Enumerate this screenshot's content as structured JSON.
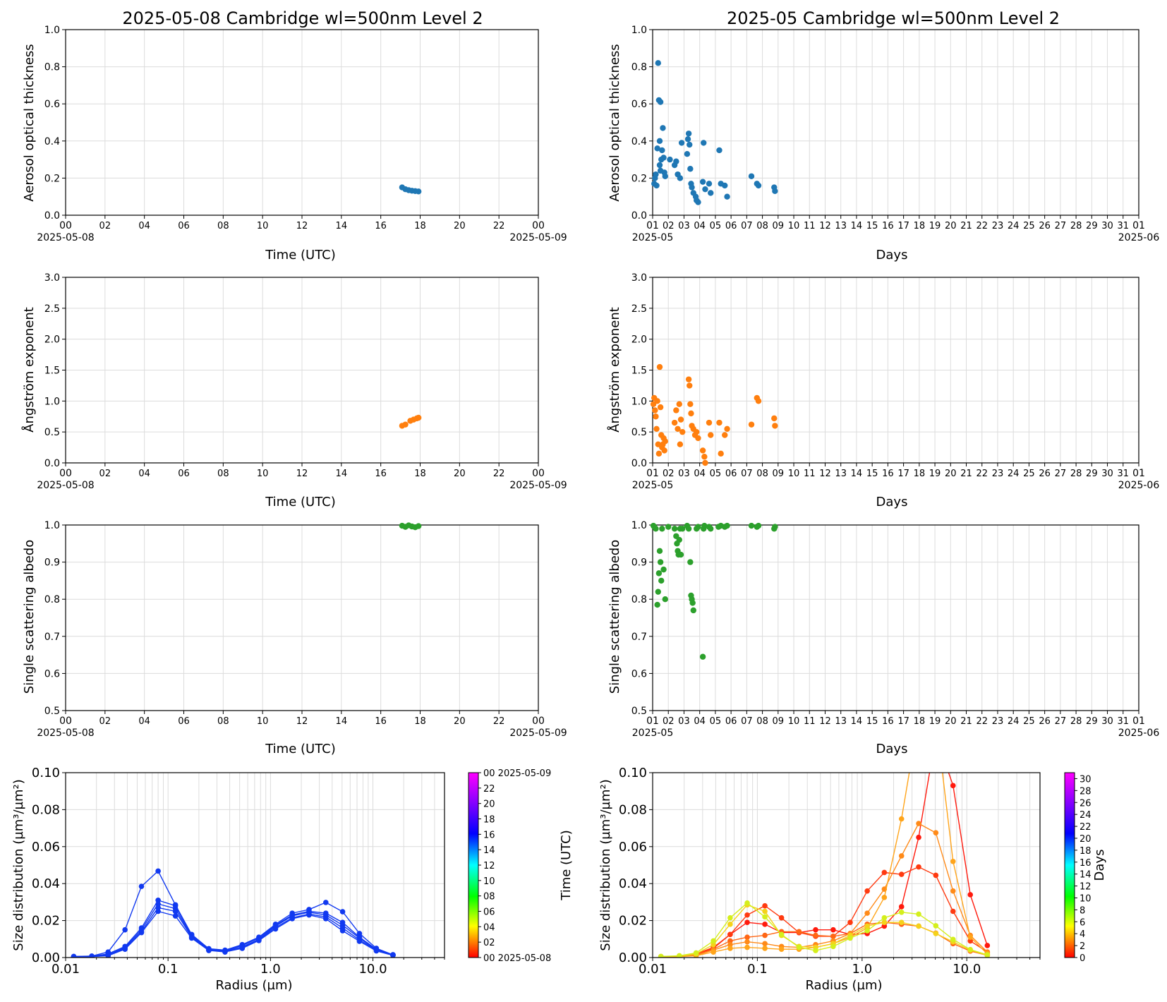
{
  "panels": {
    "left_title": "2025-05-08  Cambridge  wl=500nm  Level 2",
    "right_title": "2025-05  Cambridge  wl=500nm  Level 2",
    "time_xlabel": "Time (UTC)",
    "days_xlabel": "Days",
    "radius_xlabel": "Radius (µm)",
    "aod_ylabel": "Aerosol optical thickness",
    "angstrom_ylabel": "Ångström exponent",
    "ssa_ylabel": "Single scattering albedo",
    "sd_ylabel": "Size distribution (µm³/µm²)",
    "time_ticks": [
      "00",
      "02",
      "04",
      "06",
      "08",
      "10",
      "12",
      "14",
      "16",
      "18",
      "20",
      "22",
      "00"
    ],
    "time_start_date": "2025-05-08",
    "time_end_date": "2025-05-09",
    "day_ticks": [
      "01",
      "02",
      "03",
      "04",
      "05",
      "06",
      "07",
      "08",
      "09",
      "10",
      "11",
      "12",
      "13",
      "14",
      "15",
      "16",
      "17",
      "18",
      "19",
      "20",
      "21",
      "22",
      "23",
      "24",
      "25",
      "26",
      "27",
      "28",
      "29",
      "30",
      "31",
      "01"
    ],
    "day_start_month": "2025-05",
    "day_end_month": "2025-06",
    "radius_ticks": [
      "0.01",
      "0.1",
      "1.0",
      "10.0"
    ],
    "left_colorbar_label": "Time (UTC)",
    "left_colorbar_ticks": [
      "00 2025-05-08",
      "02",
      "04",
      "06",
      "08",
      "10",
      "12",
      "14",
      "16",
      "18",
      "20",
      "22",
      "00 2025-05-09"
    ],
    "right_colorbar_label": "Days",
    "right_colorbar_ticks": [
      "0",
      "2",
      "4",
      "6",
      "8",
      "10",
      "12",
      "14",
      "16",
      "18",
      "20",
      "22",
      "24",
      "26",
      "28",
      "30"
    ]
  },
  "colors": {
    "aod": "#1f77b4",
    "angstrom": "#ff7f0e",
    "ssa": "#2ca02c",
    "daily_sd": "#1139f0"
  },
  "chart_data": [
    {
      "id": "aod_daily",
      "type": "scatter",
      "title": "2025-05-08  Cambridge  wl=500nm  Level 2",
      "xlabel": "Time (UTC)",
      "ylabel": "Aerosol optical thickness",
      "xlim": [
        "2025-05-08 00:00",
        "2025-05-09 00:00"
      ],
      "ylim": [
        0,
        1.0
      ],
      "grid": true,
      "series": [
        {
          "x": [
            "17:05",
            "17:15",
            "17:25",
            "17:35",
            "17:45",
            "17:55"
          ],
          "y": [
            0.15,
            0.14,
            0.135,
            0.132,
            0.13,
            0.128
          ]
        }
      ]
    },
    {
      "id": "aod_monthly",
      "type": "scatter",
      "title": "2025-05  Cambridge  wl=500nm  Level 2",
      "xlabel": "Days",
      "ylabel": "Aerosol optical thickness",
      "xlim": [
        "2025-05-01",
        "2025-06-01"
      ],
      "ylim": [
        0,
        1.0
      ],
      "grid": true,
      "series": [
        {
          "x": [
            1.1,
            1.15,
            1.2,
            1.25,
            1.3,
            1.35,
            1.4,
            1.45,
            1.45,
            1.5,
            1.5,
            1.55,
            1.6,
            1.65,
            1.7,
            1.75,
            1.8,
            2.1,
            2.4,
            2.5,
            2.6,
            2.75,
            2.85,
            3.2,
            3.25,
            3.3,
            3.35,
            3.4,
            3.45,
            3.5,
            3.6,
            3.75,
            3.8,
            3.9,
            4.2,
            4.25,
            4.35,
            4.6,
            4.7,
            5.25,
            5.35,
            5.6,
            5.75,
            7.3,
            7.65,
            7.75,
            8.75,
            8.8
          ],
          "y": [
            0.17,
            0.2,
            0.22,
            0.16,
            0.36,
            0.82,
            0.62,
            0.4,
            0.27,
            0.61,
            0.24,
            0.3,
            0.35,
            0.47,
            0.31,
            0.23,
            0.21,
            0.3,
            0.27,
            0.29,
            0.22,
            0.2,
            0.39,
            0.33,
            0.41,
            0.44,
            0.38,
            0.25,
            0.17,
            0.15,
            0.12,
            0.1,
            0.08,
            0.07,
            0.18,
            0.39,
            0.14,
            0.17,
            0.12,
            0.35,
            0.17,
            0.16,
            0.1,
            0.21,
            0.17,
            0.16,
            0.15,
            0.13
          ]
        }
      ]
    },
    {
      "id": "ae_daily",
      "type": "scatter",
      "xlabel": "Time (UTC)",
      "ylabel": "Ångström exponent",
      "xlim": [
        "2025-05-08 00:00",
        "2025-05-09 00:00"
      ],
      "ylim": [
        0,
        3.0
      ],
      "grid": true,
      "series": [
        {
          "x": [
            "17:05",
            "17:15",
            "17:30",
            "17:40",
            "17:50",
            "17:55"
          ],
          "y": [
            0.6,
            0.62,
            0.68,
            0.7,
            0.72,
            0.73
          ]
        }
      ]
    },
    {
      "id": "ae_monthly",
      "type": "scatter",
      "xlabel": "Days",
      "ylabel": "Ångström exponent",
      "xlim": [
        "2025-05-01",
        "2025-06-01"
      ],
      "ylim": [
        0,
        3.0
      ],
      "grid": true,
      "series": [
        {
          "x": [
            1.05,
            1.1,
            1.15,
            1.2,
            1.25,
            1.3,
            1.35,
            1.4,
            1.45,
            1.5,
            1.55,
            1.6,
            1.65,
            1.7,
            1.75,
            1.8,
            2.4,
            2.5,
            2.6,
            2.7,
            2.75,
            2.8,
            2.9,
            3.3,
            3.35,
            3.4,
            3.45,
            3.5,
            3.6,
            3.7,
            3.8,
            3.9,
            4.2,
            4.3,
            4.35,
            4.6,
            4.7,
            5.25,
            5.35,
            5.6,
            5.75,
            7.3,
            7.65,
            7.75,
            8.75,
            8.8
          ],
          "y": [
            0.95,
            1.05,
            0.85,
            0.75,
            0.55,
            1.0,
            0.3,
            0.15,
            1.55,
            0.9,
            0.45,
            0.25,
            0.3,
            0.4,
            0.2,
            0.35,
            0.65,
            0.85,
            0.55,
            0.95,
            0.3,
            0.7,
            0.5,
            1.35,
            1.25,
            0.95,
            0.8,
            0.6,
            0.55,
            0.45,
            0.5,
            0.4,
            0.2,
            0.1,
            0.0,
            0.65,
            0.45,
            0.65,
            0.15,
            0.45,
            0.55,
            0.62,
            1.05,
            1.0,
            0.72,
            0.6
          ]
        }
      ]
    },
    {
      "id": "ssa_daily",
      "type": "scatter",
      "xlabel": "Time (UTC)",
      "ylabel": "Single scattering albedo",
      "xlim": [
        "2025-05-08 00:00",
        "2025-05-09 00:00"
      ],
      "ylim": [
        0.5,
        1.0
      ],
      "grid": true,
      "series": [
        {
          "x": [
            "17:05",
            "17:15",
            "17:25",
            "17:35",
            "17:45",
            "17:55"
          ],
          "y": [
            0.998,
            0.995,
            0.999,
            0.996,
            0.994,
            0.997
          ]
        }
      ]
    },
    {
      "id": "ssa_monthly",
      "type": "scatter",
      "xlabel": "Days",
      "ylabel": "Single scattering albedo",
      "xlim": [
        "2025-05-01",
        "2025-06-01"
      ],
      "ylim": [
        0.5,
        1.0
      ],
      "grid": true,
      "series": [
        {
          "x": [
            1.05,
            1.1,
            1.2,
            1.3,
            1.35,
            1.4,
            1.45,
            1.5,
            1.55,
            1.6,
            1.7,
            1.8,
            2.0,
            2.4,
            2.5,
            2.55,
            2.6,
            2.65,
            2.7,
            2.75,
            2.8,
            2.9,
            3.2,
            3.3,
            3.4,
            3.45,
            3.5,
            3.55,
            3.6,
            3.8,
            3.9,
            4.2,
            4.25,
            4.3,
            4.6,
            4.7,
            5.2,
            5.35,
            5.6,
            5.75,
            7.3,
            7.65,
            7.75,
            8.75,
            8.8
          ],
          "y": [
            0.998,
            0.995,
            0.99,
            0.785,
            0.82,
            0.87,
            0.93,
            0.9,
            0.85,
            0.99,
            0.88,
            0.8,
            0.995,
            0.99,
            0.97,
            0.95,
            0.93,
            0.92,
            0.96,
            0.99,
            0.92,
            0.99,
            0.998,
            0.99,
            0.9,
            0.81,
            0.8,
            0.79,
            0.77,
            0.99,
            0.995,
            0.645,
            0.99,
            0.998,
            0.995,
            0.99,
            0.995,
            0.998,
            0.995,
            0.998,
            0.998,
            0.995,
            0.998,
            0.99,
            0.995
          ]
        }
      ]
    },
    {
      "id": "sd_daily",
      "type": "line",
      "xlabel": "Radius (µm)",
      "ylabel": "Size distribution (µm³/µm²)",
      "xscale": "log",
      "xlim": [
        0.01,
        50
      ],
      "ylim": [
        0,
        0.1
      ],
      "grid": true,
      "colorbar": {
        "label": "Time (UTC)",
        "range": [
          "2025-05-08 00:00",
          "2025-05-09 00:00"
        ]
      },
      "x": [
        0.012,
        0.018,
        0.026,
        0.038,
        0.055,
        0.08,
        0.118,
        0.17,
        0.25,
        0.36,
        0.53,
        0.77,
        1.12,
        1.63,
        2.38,
        3.47,
        5.06,
        7.39,
        10.8,
        15.7
      ],
      "series": [
        {
          "values": [
            0.0006,
            0.0008,
            0.003,
            0.015,
            0.0385,
            0.0468,
            0.0285,
            0.0125,
            0.0048,
            0.004,
            0.007,
            0.011,
            0.018,
            0.024,
            0.026,
            0.0298,
            0.0248,
            0.013,
            0.005,
            0.0015
          ]
        },
        {
          "values": [
            0.0005,
            0.0007,
            0.002,
            0.006,
            0.016,
            0.031,
            0.028,
            0.012,
            0.0045,
            0.0038,
            0.0065,
            0.0105,
            0.0175,
            0.023,
            0.025,
            0.024,
            0.019,
            0.011,
            0.0045,
            0.0015
          ]
        },
        {
          "values": [
            0.0005,
            0.0006,
            0.0015,
            0.0055,
            0.015,
            0.029,
            0.0265,
            0.0115,
            0.004,
            0.0035,
            0.0058,
            0.0098,
            0.017,
            0.0225,
            0.0245,
            0.023,
            0.0175,
            0.0105,
            0.0042,
            0.0014
          ]
        },
        {
          "values": [
            0.0004,
            0.0005,
            0.0012,
            0.005,
            0.014,
            0.027,
            0.025,
            0.011,
            0.004,
            0.0032,
            0.0052,
            0.0095,
            0.0162,
            0.0215,
            0.0235,
            0.022,
            0.016,
            0.0095,
            0.004,
            0.0013
          ]
        },
        {
          "values": [
            0.0004,
            0.0005,
            0.001,
            0.0045,
            0.0135,
            0.025,
            0.0225,
            0.0105,
            0.0038,
            0.003,
            0.005,
            0.0092,
            0.0155,
            0.021,
            0.023,
            0.021,
            0.0145,
            0.0088,
            0.0036,
            0.0012
          ]
        }
      ]
    },
    {
      "id": "sd_monthly",
      "type": "line",
      "xlabel": "Radius (µm)",
      "ylabel": "Size distribution (µm³/µm²)",
      "xscale": "log",
      "xlim": [
        0.01,
        50
      ],
      "ylim": [
        0,
        0.1
      ],
      "grid": true,
      "colorbar": {
        "label": "Days",
        "range": [
          0,
          31
        ]
      },
      "x": [
        0.012,
        0.018,
        0.026,
        0.038,
        0.055,
        0.08,
        0.118,
        0.17,
        0.25,
        0.36,
        0.53,
        0.77,
        1.12,
        1.63,
        2.38,
        3.47,
        5.06,
        7.39,
        10.8,
        15.7
      ],
      "series": [
        {
          "day": 1,
          "color": "#ff1a0d",
          "values": [
            0.0005,
            0.0007,
            0.0015,
            0.005,
            0.0125,
            0.019,
            0.018,
            0.0135,
            0.0135,
            0.015,
            0.015,
            0.0125,
            0.013,
            0.017,
            0.0275,
            0.065,
            0.12,
            0.093,
            0.034,
            0.0065
          ]
        },
        {
          "day": 2,
          "color": "#ff3a10",
          "values": [
            0.0005,
            0.0008,
            0.002,
            0.0055,
            0.0125,
            0.023,
            0.028,
            0.0215,
            0.0135,
            0.0115,
            0.0115,
            0.019,
            0.036,
            0.046,
            0.045,
            0.049,
            0.0445,
            0.025,
            0.009,
            0.003
          ]
        },
        {
          "day": 3,
          "color": "#ff6614",
          "values": [
            0.0004,
            0.0006,
            0.0015,
            0.0045,
            0.009,
            0.011,
            0.012,
            0.014,
            0.014,
            0.012,
            0.0115,
            0.013,
            0.018,
            0.019,
            0.018,
            0.017,
            0.0132,
            0.0075,
            0.0035,
            0.0012
          ]
        },
        {
          "day": 4,
          "color": "#ff8a18",
          "values": [
            0.0004,
            0.0006,
            0.0012,
            0.004,
            0.007,
            0.0085,
            0.0075,
            0.006,
            0.0055,
            0.007,
            0.009,
            0.013,
            0.024,
            0.037,
            0.055,
            0.0725,
            0.0675,
            0.036,
            0.012,
            0.003
          ]
        },
        {
          "day": 5,
          "color": "#ffa41a",
          "values": [
            0.0003,
            0.0005,
            0.001,
            0.003,
            0.005,
            0.0055,
            0.005,
            0.0045,
            0.0045,
            0.0055,
            0.0075,
            0.011,
            0.016,
            0.0325,
            0.075,
            0.13,
            0.13,
            0.052,
            0.011,
            0.002
          ]
        },
        {
          "day": 6,
          "color": "#f5d21a",
          "values": [
            0.0005,
            0.0008,
            0.002,
            0.007,
            0.018,
            0.0285,
            0.025,
            0.012,
            0.006,
            0.0055,
            0.0075,
            0.012,
            0.017,
            0.019,
            0.019,
            0.017,
            0.013,
            0.0085,
            0.004,
            0.0012
          ]
        },
        {
          "day": 7,
          "color": "#d4ef1c",
          "values": [
            0.0006,
            0.001,
            0.0025,
            0.009,
            0.0215,
            0.0295,
            0.022,
            0.0125,
            0.0055,
            0.0038,
            0.006,
            0.0105,
            0.0145,
            0.0215,
            0.0245,
            0.0235,
            0.0172,
            0.0098,
            0.0043,
            0.0015
          ]
        }
      ]
    }
  ]
}
